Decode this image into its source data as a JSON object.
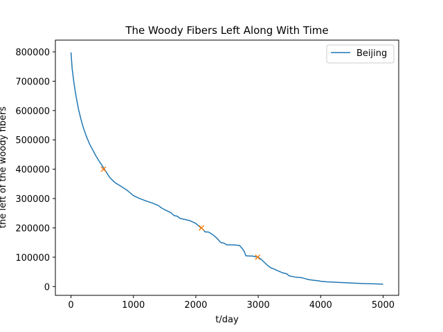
{
  "chart_data": {
    "type": "line",
    "title": "The Woody Fibers Left Along With Time",
    "xlabel": "t/day",
    "ylabel": "the left of the woody fibers",
    "xlim": [
      -250,
      5250
    ],
    "ylim": [
      -30000,
      840000
    ],
    "xticks": [
      0,
      1000,
      2000,
      3000,
      4000,
      5000
    ],
    "yticks": [
      0,
      100000,
      200000,
      300000,
      400000,
      500000,
      600000,
      700000,
      800000
    ],
    "grid": false,
    "legend_position": "upper-right",
    "series": [
      {
        "name": "Beijing",
        "color": "#1f77b4",
        "x": [
          0,
          20,
          50,
          80,
          120,
          160,
          200,
          250,
          300,
          350,
          400,
          450,
          500,
          560,
          620,
          700,
          800,
          850,
          900,
          1000,
          1100,
          1200,
          1300,
          1400,
          1450,
          1500,
          1600,
          1650,
          1700,
          1750,
          1800,
          1900,
          1950,
          2000,
          2050,
          2080,
          2100,
          2150,
          2200,
          2250,
          2300,
          2350,
          2400,
          2450,
          2500,
          2550,
          2600,
          2700,
          2750,
          2780,
          2800,
          2850,
          2900,
          2950,
          3000,
          3050,
          3100,
          3150,
          3200,
          3250,
          3300,
          3400,
          3450,
          3500,
          3600,
          3700,
          3750,
          3800,
          3900,
          3950,
          4000,
          4100,
          4200,
          4300,
          4400,
          4500,
          4600,
          4700,
          4800,
          4900,
          5000
        ],
        "y": [
          798000,
          740000,
          690000,
          650000,
          605000,
          570000,
          540000,
          510000,
          485000,
          465000,
          445000,
          428000,
          412000,
          392000,
          372000,
          355000,
          342000,
          335000,
          328000,
          310000,
          300000,
          292000,
          285000,
          276000,
          268000,
          262000,
          252000,
          242000,
          240000,
          232000,
          230000,
          225000,
          220000,
          215000,
          206000,
          200000,
          198000,
          186000,
          186000,
          180000,
          172000,
          162000,
          150000,
          148000,
          142000,
          142000,
          142000,
          140000,
          128000,
          118000,
          105000,
          104000,
          104000,
          102000,
          100000,
          92000,
          82000,
          72000,
          64000,
          60000,
          55000,
          46000,
          44000,
          36000,
          32000,
          30000,
          27000,
          24000,
          21000,
          20000,
          18000,
          16000,
          15000,
          14000,
          13000,
          12000,
          11000,
          10000,
          9500,
          9000,
          8000
        ]
      }
    ],
    "markers": {
      "color": "#ff7f0e",
      "symbol": "x",
      "x": [
        520,
        2090,
        2990
      ],
      "y": [
        400000,
        200000,
        100000
      ]
    }
  }
}
